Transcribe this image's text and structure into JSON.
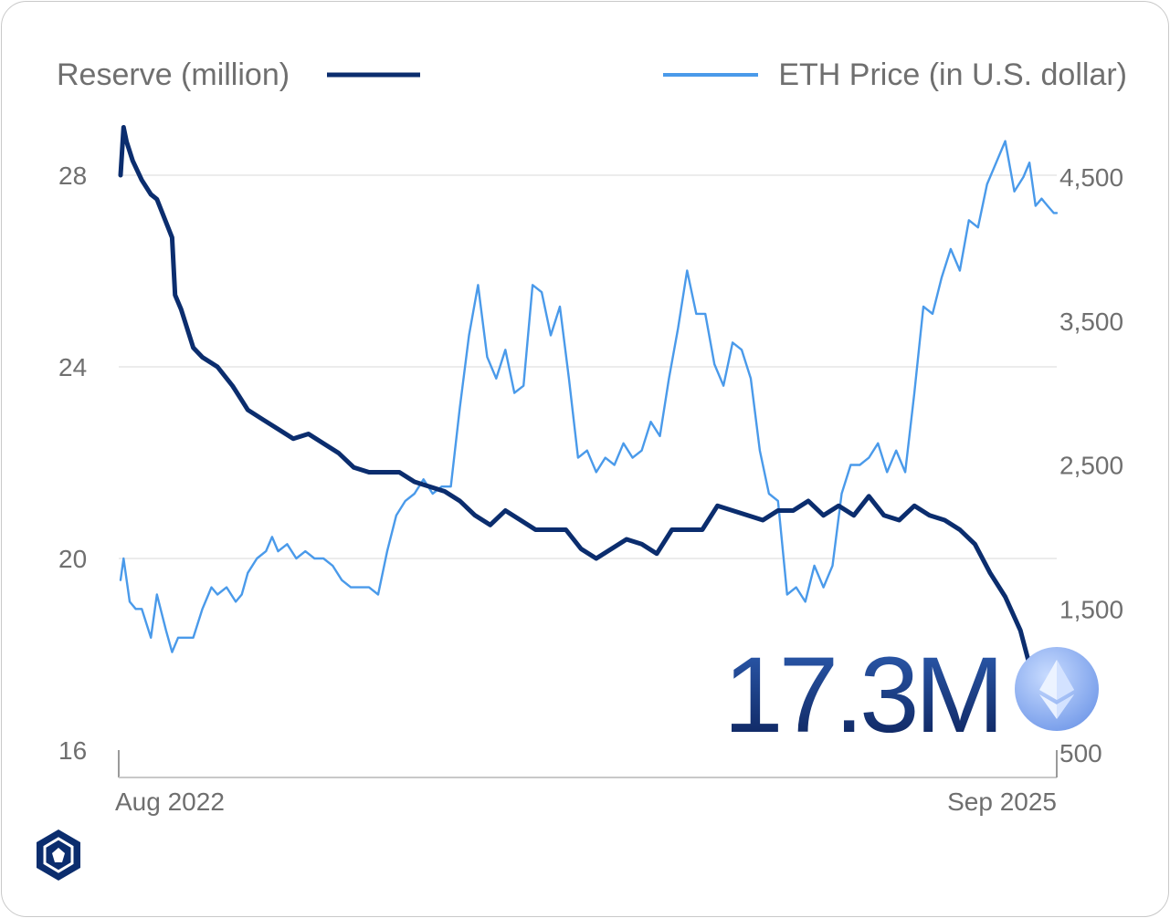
{
  "chart_data": {
    "type": "line",
    "legend": {
      "reserve_label": "Reserve (million)",
      "price_label": "ETH Price (in U.S. dollar)"
    },
    "x_tick_labels": [
      "Aug 2022",
      "Sep 2025"
    ],
    "x_range": [
      2022.58,
      2025.67
    ],
    "y_left": {
      "name": "Reserve (million)",
      "range": [
        16,
        29.5
      ],
      "ticks": [
        28,
        24,
        20,
        16
      ],
      "tick_labels": [
        "28",
        "24",
        "20",
        "16"
      ]
    },
    "y_right": {
      "name": "ETH Price (in U.S. dollar)",
      "range": [
        500,
        5000
      ],
      "ticks": [
        4500,
        3500,
        2500,
        1500,
        500
      ],
      "tick_labels": [
        "4,500",
        "3,500",
        "2,500",
        "1,500",
        "500"
      ]
    },
    "series": [
      {
        "name": "Reserve (million)",
        "axis": "left",
        "color": "#0b2d6e",
        "x": [
          2022.58,
          2022.59,
          2022.6,
          2022.62,
          2022.65,
          2022.68,
          2022.7,
          2022.75,
          2022.76,
          2022.78,
          2022.82,
          2022.85,
          2022.9,
          2022.95,
          2022.98,
          2023.0,
          2023.05,
          2023.1,
          2023.15,
          2023.2,
          2023.25,
          2023.3,
          2023.35,
          2023.4,
          2023.45,
          2023.5,
          2023.55,
          2023.6,
          2023.65,
          2023.7,
          2023.75,
          2023.8,
          2023.85,
          2023.9,
          2023.95,
          2024.0,
          2024.05,
          2024.1,
          2024.15,
          2024.2,
          2024.25,
          2024.3,
          2024.35,
          2024.4,
          2024.45,
          2024.5,
          2024.55,
          2024.6,
          2024.65,
          2024.7,
          2024.75,
          2024.8,
          2024.85,
          2024.9,
          2024.95,
          2025.0,
          2025.05,
          2025.1,
          2025.15,
          2025.2,
          2025.25,
          2025.3,
          2025.35,
          2025.4,
          2025.45,
          2025.5,
          2025.55,
          2025.6,
          2025.63,
          2025.65,
          2025.67
        ],
        "values": [
          28.0,
          29.0,
          28.7,
          28.3,
          27.9,
          27.6,
          27.5,
          26.7,
          25.5,
          25.2,
          24.4,
          24.2,
          24.0,
          23.6,
          23.3,
          23.1,
          22.9,
          22.7,
          22.5,
          22.6,
          22.4,
          22.2,
          21.9,
          21.8,
          21.8,
          21.8,
          21.6,
          21.5,
          21.4,
          21.2,
          20.9,
          20.7,
          21.0,
          20.8,
          20.6,
          20.6,
          20.6,
          20.2,
          20.0,
          20.2,
          20.4,
          20.3,
          20.1,
          20.6,
          20.6,
          20.6,
          21.1,
          21.0,
          20.9,
          20.8,
          21.0,
          21.0,
          21.2,
          20.9,
          21.1,
          20.9,
          21.3,
          20.9,
          20.8,
          21.1,
          20.9,
          20.8,
          20.6,
          20.3,
          19.7,
          19.2,
          18.5,
          17.3,
          17.3,
          17.3,
          17.3
        ]
      },
      {
        "name": "ETH Price (in U.S. dollar)",
        "axis": "right",
        "color": "#4a9aea",
        "x": [
          2022.58,
          2022.59,
          2022.61,
          2022.63,
          2022.65,
          2022.68,
          2022.7,
          2022.73,
          2022.75,
          2022.77,
          2022.79,
          2022.82,
          2022.85,
          2022.88,
          2022.9,
          2022.93,
          2022.96,
          2022.98,
          2023.0,
          2023.03,
          2023.06,
          2023.08,
          2023.1,
          2023.13,
          2023.16,
          2023.19,
          2023.22,
          2023.25,
          2023.28,
          2023.31,
          2023.34,
          2023.37,
          2023.4,
          2023.43,
          2023.46,
          2023.49,
          2023.52,
          2023.55,
          2023.58,
          2023.61,
          2023.64,
          2023.67,
          2023.7,
          2023.73,
          2023.76,
          2023.79,
          2023.82,
          2023.85,
          2023.88,
          2023.91,
          2023.94,
          2023.97,
          2024.0,
          2024.03,
          2024.06,
          2024.09,
          2024.12,
          2024.15,
          2024.18,
          2024.21,
          2024.24,
          2024.27,
          2024.3,
          2024.33,
          2024.36,
          2024.39,
          2024.42,
          2024.45,
          2024.48,
          2024.51,
          2024.54,
          2024.57,
          2024.6,
          2024.63,
          2024.66,
          2024.69,
          2024.72,
          2024.75,
          2024.78,
          2024.81,
          2024.84,
          2024.87,
          2024.9,
          2024.93,
          2024.96,
          2024.99,
          2025.02,
          2025.05,
          2025.08,
          2025.11,
          2025.14,
          2025.17,
          2025.2,
          2025.23,
          2025.26,
          2025.29,
          2025.32,
          2025.35,
          2025.38,
          2025.41,
          2025.44,
          2025.47,
          2025.5,
          2025.53,
          2025.56,
          2025.58,
          2025.6,
          2025.62,
          2025.64,
          2025.66,
          2025.67
        ],
        "values": [
          1700,
          1850,
          1550,
          1500,
          1500,
          1300,
          1600,
          1350,
          1200,
          1300,
          1300,
          1300,
          1500,
          1650,
          1600,
          1650,
          1550,
          1600,
          1750,
          1850,
          1900,
          2000,
          1900,
          1950,
          1850,
          1900,
          1850,
          1850,
          1800,
          1700,
          1650,
          1650,
          1650,
          1600,
          1900,
          2150,
          2250,
          2300,
          2400,
          2300,
          2350,
          2350,
          2900,
          3400,
          3750,
          3250,
          3100,
          3300,
          3000,
          3050,
          3750,
          3700,
          3400,
          3600,
          3100,
          2550,
          2600,
          2450,
          2550,
          2500,
          2650,
          2550,
          2600,
          2800,
          2700,
          3100,
          3450,
          3850,
          3550,
          3550,
          3200,
          3050,
          3350,
          3300,
          3100,
          2600,
          2300,
          2250,
          1600,
          1650,
          1550,
          1800,
          1650,
          1800,
          2300,
          2500,
          2500,
          2550,
          2650,
          2450,
          2600,
          2450,
          3000,
          3600,
          3550,
          3800,
          4000,
          3850,
          4200,
          4150,
          4450,
          4600,
          4750,
          4400,
          4500,
          4600,
          4300,
          4350,
          4300,
          4250,
          4250
        ]
      }
    ],
    "annotation": {
      "value_label": "17.3M",
      "icon": "ethereum-icon"
    },
    "logo": {
      "icon": "crypto-com-logo-icon"
    }
  }
}
